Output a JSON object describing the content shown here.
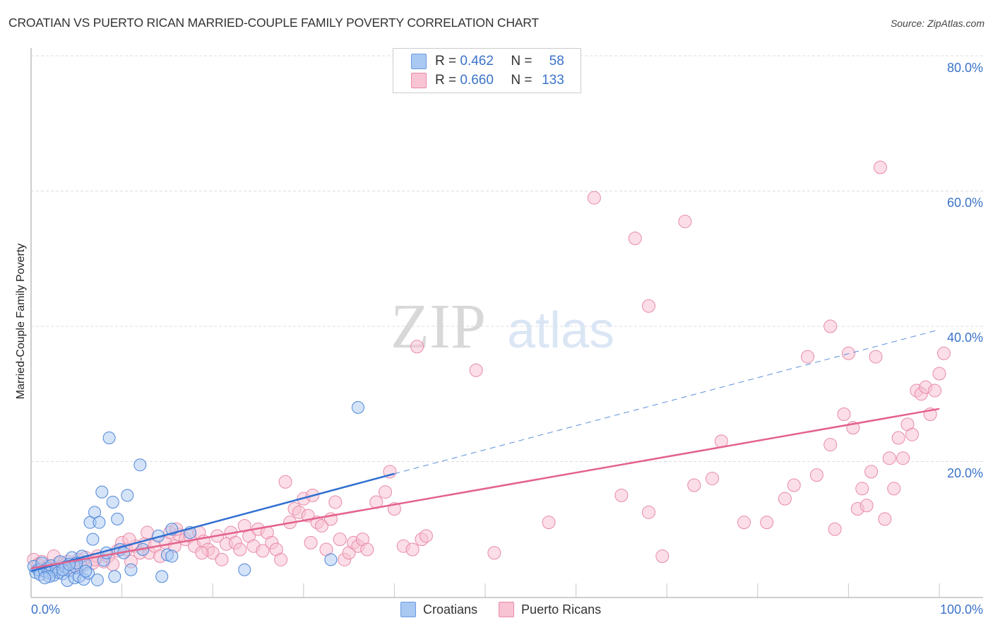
{
  "header": {
    "title": "CROATIAN VS PUERTO RICAN MARRIED-COUPLE FAMILY POVERTY CORRELATION CHART",
    "source": "Source: ZipAtlas.com"
  },
  "watermark": {
    "zip": "ZIP",
    "atlas": "atlas"
  },
  "legend_top": {
    "rows": [
      {
        "r_label": "R =",
        "r_value": "0.462",
        "n_label": "N =",
        "n_value": "58",
        "color": "#a9c8f2",
        "border": "#6b9be0"
      },
      {
        "r_label": "R =",
        "r_value": "0.660",
        "n_label": "N =",
        "n_value": "133",
        "color": "#f8c3d3",
        "border": "#e88aa8"
      }
    ]
  },
  "legend_bottom": {
    "items": [
      {
        "label": "Croatians",
        "color": "#a9c8f2",
        "border": "#6b9be0"
      },
      {
        "label": "Puerto Ricans",
        "color": "#f8c3d3",
        "border": "#e88aa8"
      }
    ]
  },
  "axes": {
    "ylabel": "Married-Couple Family Poverty",
    "yticks": [
      "80.0%",
      "60.0%",
      "40.0%",
      "20.0%"
    ],
    "xticks": [
      "0.0%",
      "100.0%"
    ]
  },
  "chart_data": {
    "type": "scatter",
    "title": "CROATIAN VS PUERTO RICAN MARRIED-COUPLE FAMILY POVERTY CORRELATION CHART",
    "xlabel": "",
    "ylabel": "Married-Couple Family Poverty",
    "xlim": [
      0,
      100
    ],
    "ylim": [
      0,
      80
    ],
    "grid": true,
    "legend_position": "top-center",
    "series": [
      {
        "name": "Croatians",
        "color": "#6b9be0",
        "R": 0.462,
        "N": 58,
        "trend": {
          "x0": 0,
          "y0": 3.8,
          "x1": 40,
          "y1": 18.2,
          "dashed_to": {
            "x": 100,
            "y": 39.5
          }
        },
        "points": [
          [
            0.3,
            4.5
          ],
          [
            0.5,
            3.6
          ],
          [
            0.8,
            4.0
          ],
          [
            1.0,
            3.3
          ],
          [
            1.2,
            5.0
          ],
          [
            1.5,
            3.8
          ],
          [
            1.8,
            4.2
          ],
          [
            2.0,
            3.5
          ],
          [
            2.2,
            4.6
          ],
          [
            2.5,
            3.2
          ],
          [
            2.8,
            4.0
          ],
          [
            3.0,
            3.6
          ],
          [
            3.2,
            5.2
          ],
          [
            3.5,
            3.4
          ],
          [
            3.8,
            4.4
          ],
          [
            4.0,
            2.4
          ],
          [
            4.2,
            3.9
          ],
          [
            4.5,
            5.8
          ],
          [
            4.8,
            2.8
          ],
          [
            5.0,
            4.3
          ],
          [
            5.3,
            3.0
          ],
          [
            5.6,
            6.0
          ],
          [
            5.8,
            2.6
          ],
          [
            6.0,
            4.8
          ],
          [
            6.3,
            3.5
          ],
          [
            6.8,
            8.5
          ],
          [
            6.5,
            11.0
          ],
          [
            7.0,
            12.5
          ],
          [
            7.3,
            2.5
          ],
          [
            7.5,
            11.0
          ],
          [
            7.8,
            15.5
          ],
          [
            8.0,
            5.4
          ],
          [
            8.3,
            6.5
          ],
          [
            8.6,
            23.5
          ],
          [
            9.0,
            14.0
          ],
          [
            9.2,
            3.0
          ],
          [
            9.5,
            11.5
          ],
          [
            9.8,
            7.0
          ],
          [
            10.2,
            6.5
          ],
          [
            10.6,
            15.0
          ],
          [
            11.0,
            4.0
          ],
          [
            12.0,
            19.5
          ],
          [
            12.3,
            7.0
          ],
          [
            14.0,
            9.0
          ],
          [
            14.4,
            3.0
          ],
          [
            15.0,
            6.2
          ],
          [
            15.5,
            10.0
          ],
          [
            15.5,
            6.0
          ],
          [
            17.5,
            9.5
          ],
          [
            23.5,
            4.0
          ],
          [
            33.0,
            5.5
          ],
          [
            36.0,
            28.0
          ],
          [
            5.0,
            5.0
          ],
          [
            3.5,
            4.0
          ],
          [
            2.0,
            3.0
          ],
          [
            6.0,
            3.8
          ],
          [
            1.5,
            2.8
          ],
          [
            4.2,
            4.8
          ]
        ]
      },
      {
        "name": "Puerto Ricans",
        "color": "#e88aa8",
        "R": 0.66,
        "N": 133,
        "trend": {
          "x0": 0,
          "y0": 4.2,
          "x1": 100,
          "y1": 27.8
        },
        "points": [
          [
            0.3,
            5.5
          ],
          [
            0.8,
            4.8
          ],
          [
            1.2,
            5.2
          ],
          [
            1.8,
            4.5
          ],
          [
            2.3,
            4.0
          ],
          [
            3.0,
            5.0
          ],
          [
            3.5,
            4.5
          ],
          [
            4.0,
            5.2
          ],
          [
            4.6,
            4.3
          ],
          [
            5.2,
            5.5
          ],
          [
            6.0,
            5.8
          ],
          [
            6.8,
            5.0
          ],
          [
            7.3,
            6.0
          ],
          [
            8.0,
            5.2
          ],
          [
            8.5,
            6.0
          ],
          [
            9.0,
            4.8
          ],
          [
            9.5,
            6.8
          ],
          [
            10.0,
            8.0
          ],
          [
            10.5,
            7.0
          ],
          [
            11.0,
            5.2
          ],
          [
            11.5,
            7.5
          ],
          [
            12.0,
            6.5
          ],
          [
            12.5,
            7.8
          ],
          [
            13.0,
            6.5
          ],
          [
            13.6,
            7.5
          ],
          [
            14.2,
            6.0
          ],
          [
            14.8,
            8.0
          ],
          [
            15.3,
            9.5
          ],
          [
            15.8,
            7.5
          ],
          [
            16.3,
            9.2
          ],
          [
            17.0,
            8.5
          ],
          [
            17.5,
            9.0
          ],
          [
            18.0,
            7.5
          ],
          [
            18.5,
            9.5
          ],
          [
            19.0,
            8.2
          ],
          [
            19.5,
            7.0
          ],
          [
            20.0,
            6.5
          ],
          [
            20.5,
            9.0
          ],
          [
            21.0,
            5.5
          ],
          [
            21.5,
            7.8
          ],
          [
            22.0,
            9.5
          ],
          [
            22.5,
            8.0
          ],
          [
            23.0,
            7.0
          ],
          [
            23.5,
            10.5
          ],
          [
            24.0,
            9.0
          ],
          [
            24.5,
            7.5
          ],
          [
            25.0,
            10.0
          ],
          [
            25.5,
            6.8
          ],
          [
            26.0,
            9.5
          ],
          [
            26.5,
            8.0
          ],
          [
            27.0,
            7.0
          ],
          [
            27.5,
            5.5
          ],
          [
            28.0,
            17.0
          ],
          [
            28.5,
            11.0
          ],
          [
            29.0,
            13.0
          ],
          [
            29.5,
            12.5
          ],
          [
            30.0,
            14.5
          ],
          [
            30.5,
            12.0
          ],
          [
            31.0,
            15.0
          ],
          [
            31.5,
            11.0
          ],
          [
            32.0,
            10.5
          ],
          [
            32.5,
            7.0
          ],
          [
            33.0,
            11.5
          ],
          [
            33.5,
            14.0
          ],
          [
            34.0,
            8.5
          ],
          [
            34.5,
            5.5
          ],
          [
            35.0,
            6.5
          ],
          [
            35.5,
            8.0
          ],
          [
            36.0,
            7.5
          ],
          [
            36.5,
            8.5
          ],
          [
            37.0,
            7.0
          ],
          [
            38.0,
            14.0
          ],
          [
            39.0,
            15.5
          ],
          [
            39.5,
            18.5
          ],
          [
            40.0,
            13.0
          ],
          [
            41.0,
            7.5
          ],
          [
            42.0,
            7.0
          ],
          [
            42.5,
            37.0
          ],
          [
            43.0,
            8.5
          ],
          [
            43.5,
            9.0
          ],
          [
            49.0,
            33.5
          ],
          [
            51.0,
            6.5
          ],
          [
            57.0,
            11.0
          ],
          [
            62.0,
            59.0
          ],
          [
            65.0,
            15.0
          ],
          [
            66.5,
            53.0
          ],
          [
            68.0,
            12.5
          ],
          [
            68.0,
            43.0
          ],
          [
            69.5,
            6.0
          ],
          [
            72.0,
            55.5
          ],
          [
            73.0,
            16.5
          ],
          [
            75.0,
            17.5
          ],
          [
            76.0,
            23.0
          ],
          [
            78.5,
            11.0
          ],
          [
            81.0,
            11.0
          ],
          [
            83.0,
            14.5
          ],
          [
            84.0,
            16.5
          ],
          [
            85.5,
            35.5
          ],
          [
            86.5,
            18.0
          ],
          [
            88.5,
            10.0
          ],
          [
            89.5,
            27.0
          ],
          [
            88.0,
            22.5
          ],
          [
            88.0,
            40.0
          ],
          [
            90.0,
            36.0
          ],
          [
            90.5,
            25.0
          ],
          [
            91.0,
            13.0
          ],
          [
            91.5,
            16.0
          ],
          [
            92.0,
            13.5
          ],
          [
            92.5,
            18.5
          ],
          [
            93.0,
            35.5
          ],
          [
            93.5,
            63.5
          ],
          [
            94.0,
            11.5
          ],
          [
            94.5,
            20.5
          ],
          [
            95.0,
            16.0
          ],
          [
            95.5,
            23.5
          ],
          [
            96.0,
            20.5
          ],
          [
            96.5,
            25.5
          ],
          [
            97.0,
            24.0
          ],
          [
            97.5,
            30.5
          ],
          [
            98.0,
            30.0
          ],
          [
            98.5,
            31.0
          ],
          [
            99.0,
            27.0
          ],
          [
            99.5,
            30.5
          ],
          [
            100.0,
            33.0
          ],
          [
            100.5,
            36.0
          ],
          [
            2.5,
            6.0
          ],
          [
            5.5,
            4.5
          ],
          [
            7.0,
            5.5
          ],
          [
            10.8,
            8.5
          ],
          [
            12.8,
            9.5
          ],
          [
            16.0,
            10.0
          ],
          [
            18.8,
            6.5
          ],
          [
            30.8,
            8.0
          ]
        ]
      }
    ]
  }
}
